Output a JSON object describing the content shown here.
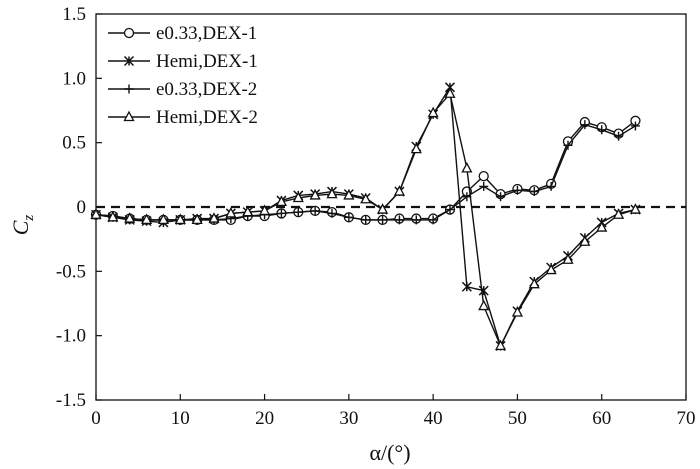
{
  "chart_data": {
    "type": "line",
    "xlabel": "α/(°)",
    "ylabel_main": "C",
    "ylabel_sub": "z",
    "xlim": [
      0,
      70
    ],
    "ylim": [
      -1.5,
      1.5
    ],
    "xticks": [
      0,
      10,
      20,
      30,
      40,
      50,
      60,
      70
    ],
    "yticks": [
      -1.5,
      -1.0,
      -0.5,
      0,
      0.5,
      1.0,
      1.5
    ],
    "xtick_labels": [
      "0",
      "10",
      "20",
      "30",
      "40",
      "50",
      "60",
      "70"
    ],
    "ytick_labels": [
      "-1.5",
      "-1.0",
      "-0.5",
      "0",
      "0.5",
      "1.0",
      "1.5"
    ],
    "grid": false,
    "legend_position": "top-left",
    "reference_line": {
      "y": 0,
      "style": "dashed"
    },
    "series": [
      {
        "name": "e0.33,DEX-1",
        "marker": "circle",
        "x": [
          0,
          2,
          4,
          6,
          8,
          10,
          12,
          14,
          16,
          18,
          20,
          22,
          24,
          26,
          28,
          30,
          32,
          34,
          36,
          38,
          40,
          42,
          44,
          46,
          48,
          50,
          52,
          54,
          56,
          58,
          60,
          62,
          64
        ],
        "y": [
          -0.06,
          -0.07,
          -0.09,
          -0.1,
          -0.1,
          -0.1,
          -0.1,
          -0.1,
          -0.1,
          -0.07,
          -0.07,
          -0.05,
          -0.04,
          -0.03,
          -0.04,
          -0.08,
          -0.1,
          -0.1,
          -0.09,
          -0.09,
          -0.09,
          -0.02,
          0.12,
          0.24,
          0.1,
          0.14,
          0.13,
          0.18,
          0.51,
          0.66,
          0.62,
          0.57,
          0.67
        ]
      },
      {
        "name": "Hemi,DEX-1",
        "marker": "x-star",
        "x": [
          0,
          2,
          4,
          6,
          8,
          10,
          12,
          14,
          16,
          18,
          20,
          22,
          24,
          26,
          28,
          30,
          32,
          34,
          36,
          38,
          40,
          42,
          44,
          46,
          48,
          50,
          52,
          54,
          56,
          58,
          60,
          62,
          64
        ],
        "y": [
          -0.06,
          -0.08,
          -0.1,
          -0.11,
          -0.12,
          -0.1,
          -0.09,
          -0.09,
          -0.05,
          -0.04,
          -0.03,
          0.05,
          0.09,
          0.1,
          0.12,
          0.1,
          0.07,
          -0.02,
          0.12,
          0.47,
          0.72,
          0.93,
          -0.62,
          -0.65,
          -1.08,
          -0.81,
          -0.58,
          -0.47,
          -0.38,
          -0.24,
          -0.12,
          -0.05,
          -0.02
        ]
      },
      {
        "name": "e0.33,DEX-2",
        "marker": "plus",
        "x": [
          0,
          2,
          4,
          6,
          8,
          10,
          12,
          14,
          16,
          18,
          20,
          22,
          24,
          26,
          28,
          30,
          32,
          34,
          36,
          38,
          40,
          42,
          44,
          46,
          48,
          50,
          52,
          54,
          56,
          58,
          60,
          62,
          64
        ],
        "y": [
          -0.06,
          -0.07,
          -0.09,
          -0.1,
          -0.1,
          -0.1,
          -0.1,
          -0.1,
          -0.09,
          -0.07,
          -0.06,
          -0.05,
          -0.04,
          -0.03,
          -0.05,
          -0.08,
          -0.1,
          -0.1,
          -0.1,
          -0.1,
          -0.1,
          -0.02,
          0.08,
          0.16,
          0.08,
          0.13,
          0.12,
          0.16,
          0.48,
          0.64,
          0.6,
          0.55,
          0.63
        ]
      },
      {
        "name": "Hemi,DEX-2",
        "marker": "triangle",
        "x": [
          0,
          2,
          4,
          6,
          8,
          10,
          12,
          14,
          16,
          18,
          20,
          22,
          24,
          26,
          28,
          30,
          32,
          34,
          36,
          38,
          40,
          42,
          44,
          46,
          48,
          50,
          52,
          54,
          56,
          58,
          60,
          62,
          64
        ],
        "y": [
          -0.06,
          -0.08,
          -0.09,
          -0.1,
          -0.1,
          -0.1,
          -0.1,
          -0.09,
          -0.05,
          -0.04,
          -0.03,
          0.04,
          0.07,
          0.09,
          0.1,
          0.09,
          0.06,
          -0.02,
          0.12,
          0.45,
          0.73,
          0.88,
          0.3,
          -0.77,
          -1.08,
          -0.82,
          -0.6,
          -0.49,
          -0.41,
          -0.27,
          -0.16,
          -0.06,
          -0.02
        ]
      }
    ]
  }
}
